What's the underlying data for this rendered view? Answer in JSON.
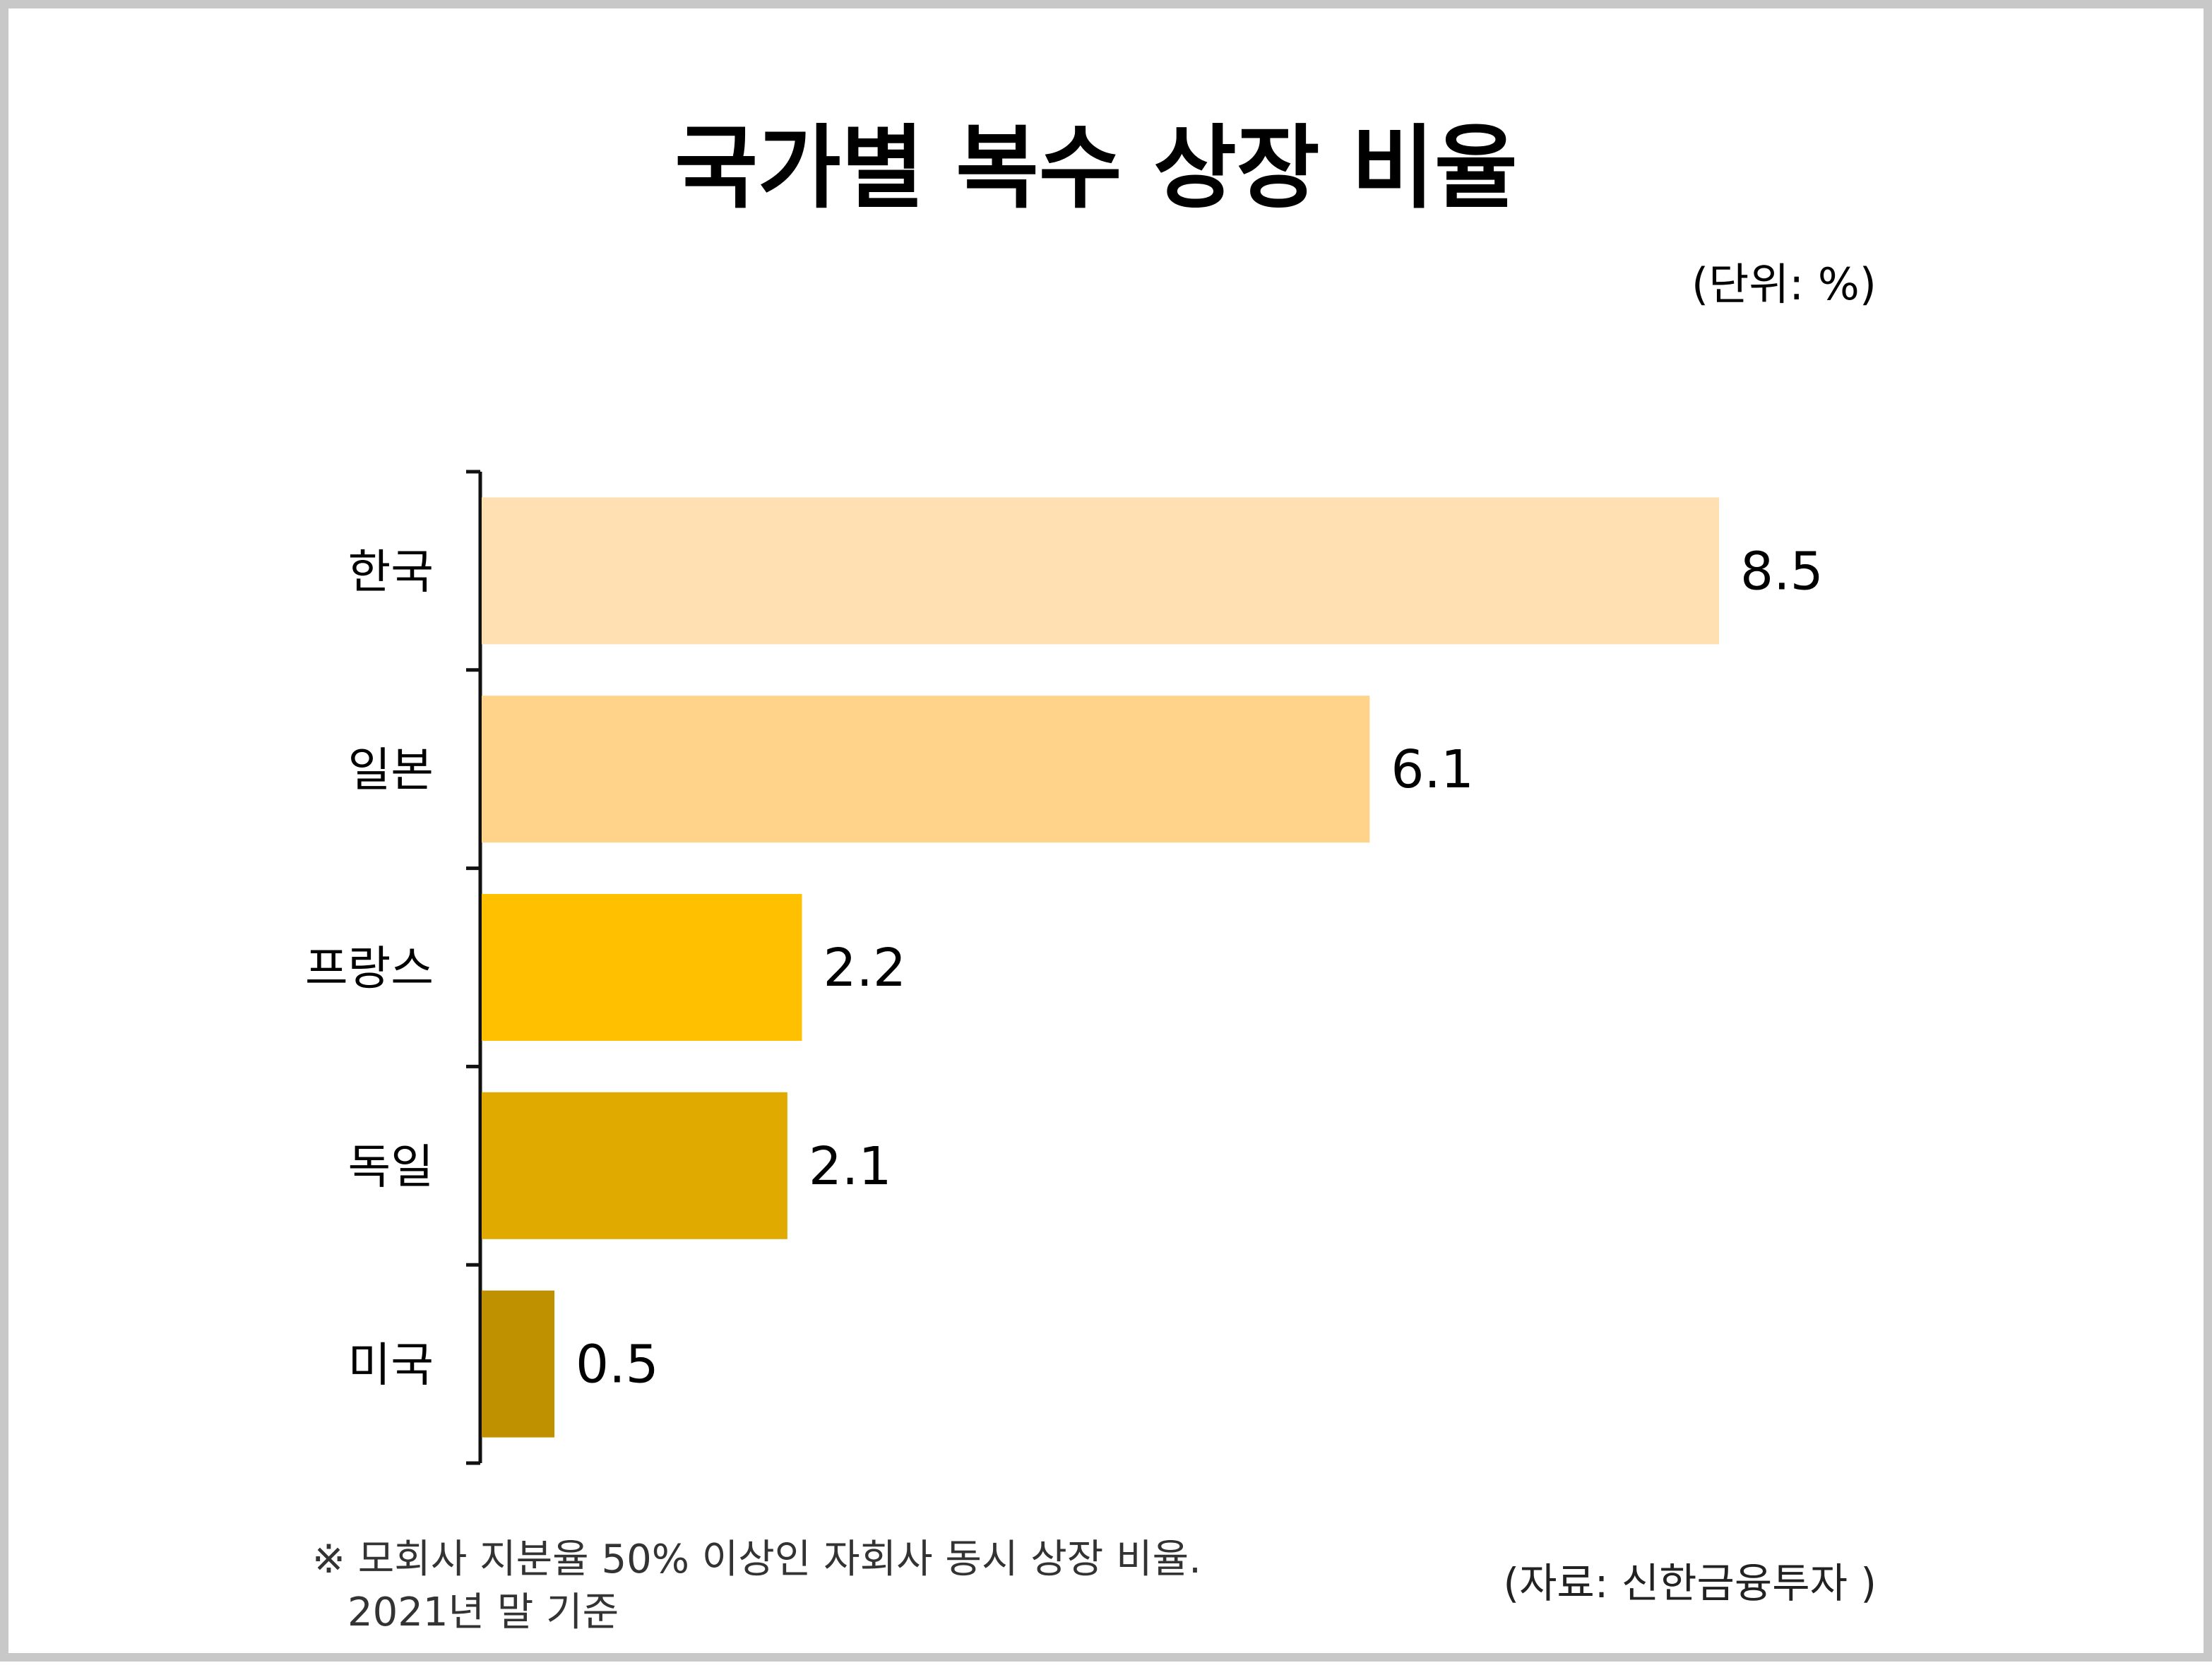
{
  "chart_data": {
    "type": "bar",
    "orientation": "horizontal",
    "title": "국가별 복수 상장 비율",
    "unit_label": "(단위: %)",
    "categories": [
      "한국",
      "일본",
      "프랑스",
      "독일",
      "미국"
    ],
    "values": [
      8.5,
      6.1,
      2.2,
      2.1,
      0.5
    ],
    "value_labels": [
      "8.5",
      "6.1",
      "2.2",
      "2.1",
      "0.5"
    ],
    "colors": [
      "#FFE0B3",
      "#FFD48A",
      "#FFC000",
      "#E0AA00",
      "#BF9000"
    ],
    "xlim": [
      0,
      8.5
    ],
    "grid": false
  },
  "footnote": {
    "line1": "※ 모회사 지분율 50% 이상인 자회사 동시 상장 비율.",
    "line2": "2021년 말 기준"
  },
  "source": "(자료: 신한금융투자 )"
}
